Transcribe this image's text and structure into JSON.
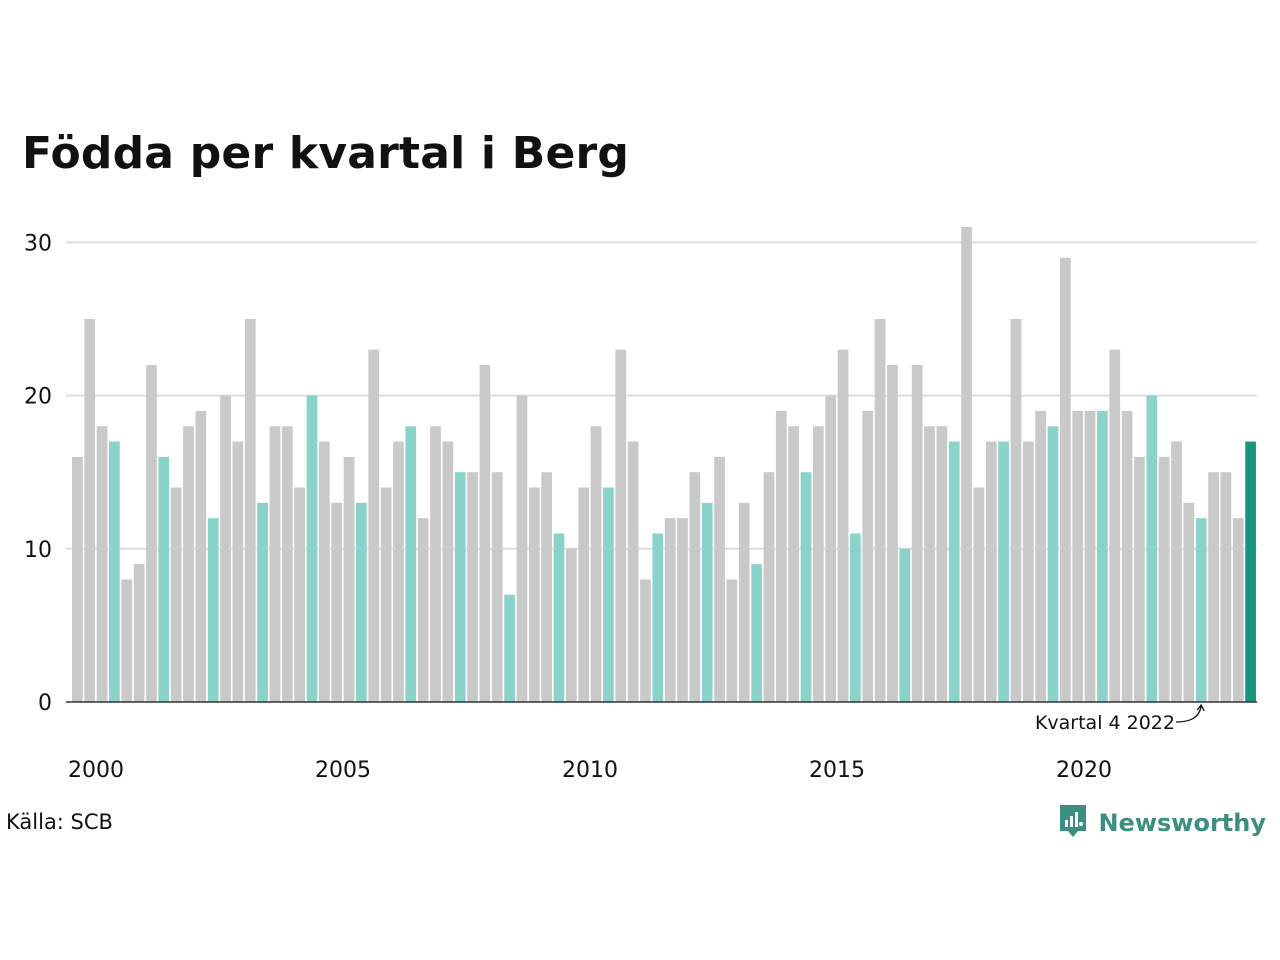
{
  "chart_data": {
    "type": "bar",
    "title": "Födda per kvartal i Berg",
    "xlabel": "",
    "ylabel": "",
    "ylim": [
      0,
      31
    ],
    "yticks": [
      0,
      10,
      20,
      30
    ],
    "x_tick_labels": [
      "2000",
      "2005",
      "2010",
      "2015",
      "2020"
    ],
    "grid": "horizontal",
    "start_year": 2000,
    "values": [
      16,
      25,
      18,
      17,
      8,
      9,
      22,
      16,
      14,
      18,
      19,
      12,
      20,
      17,
      25,
      13,
      18,
      18,
      14,
      20,
      17,
      13,
      16,
      13,
      23,
      14,
      17,
      18,
      12,
      18,
      17,
      15,
      15,
      22,
      15,
      7,
      20,
      14,
      15,
      11,
      10,
      14,
      18,
      14,
      23,
      17,
      8,
      11,
      12,
      12,
      15,
      13,
      16,
      8,
      13,
      9,
      15,
      19,
      18,
      15,
      18,
      20,
      23,
      11,
      19,
      25,
      22,
      10,
      22,
      18,
      18,
      17,
      31,
      14,
      17,
      17,
      25,
      17,
      19,
      18,
      29,
      19,
      19,
      19,
      23,
      19,
      16,
      20,
      16,
      17,
      13,
      12,
      15,
      15,
      12,
      17
    ],
    "annotation": "Kvartal 4 2022",
    "colors": {
      "default": "#c9c9c9",
      "same_quarter": "#8ad3cb",
      "latest": "#17967f",
      "grid": "#dddddd",
      "axis": "#333333"
    }
  },
  "source": "Källa: SCB",
  "brand": {
    "name": "Newsworthy",
    "icon": "newsworthy-logo-icon",
    "color": "#3c8f80"
  }
}
